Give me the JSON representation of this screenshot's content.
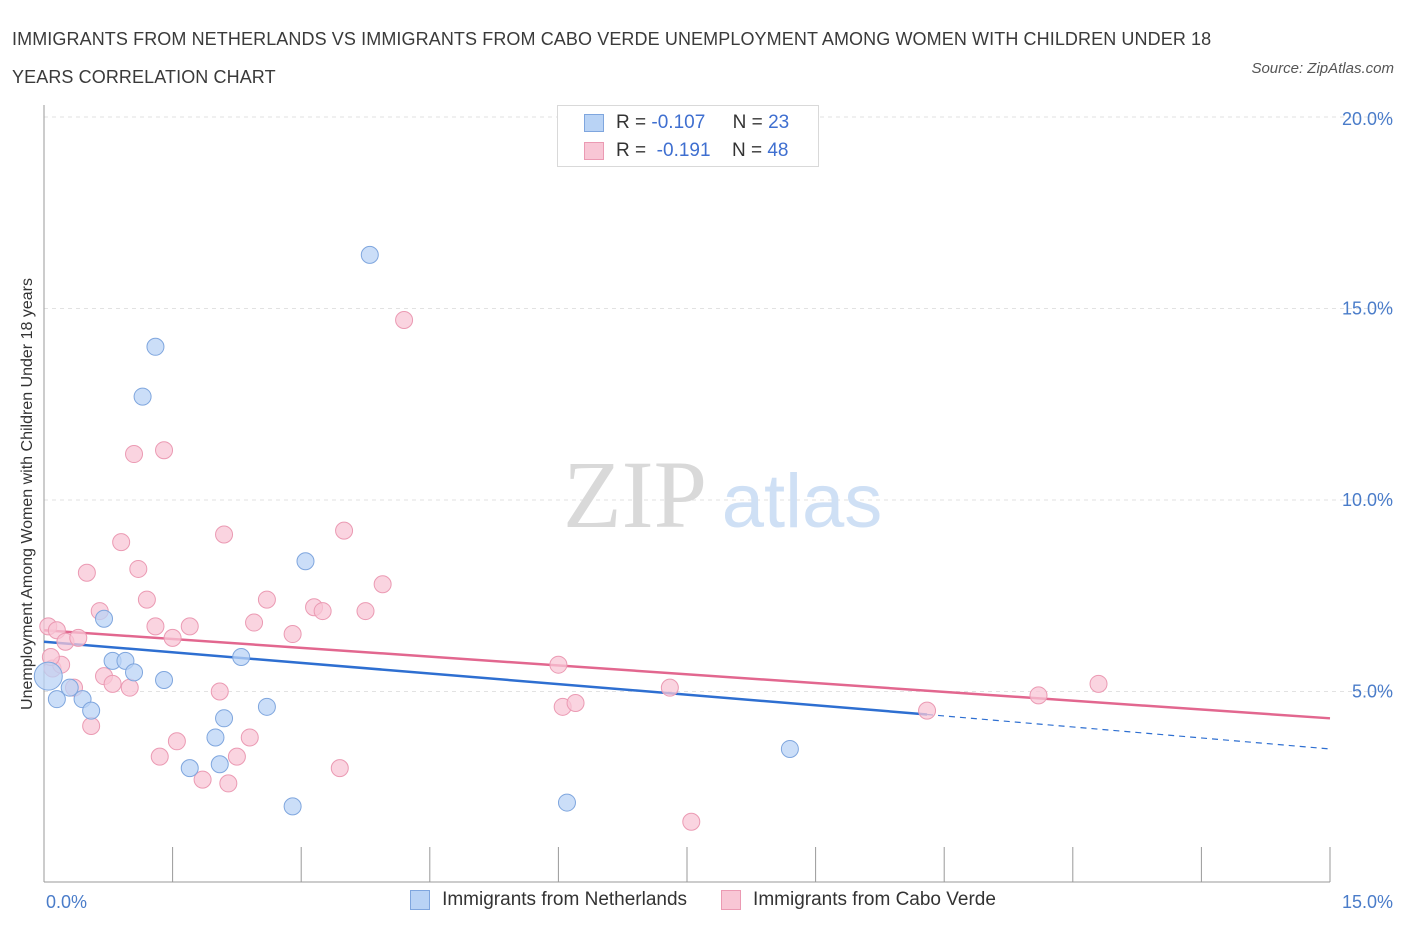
{
  "header": {
    "title": "IMMIGRANTS FROM NETHERLANDS VS IMMIGRANTS FROM CABO VERDE UNEMPLOYMENT AMONG WOMEN WITH CHILDREN UNDER 18 YEARS CORRELATION CHART",
    "source": "Source: ZipAtlas.com"
  },
  "watermark": {
    "zip": "ZIP",
    "atlas": "atlas"
  },
  "legend_top": {
    "rows": [
      {
        "r_label": "R =",
        "r_value": "-0.107",
        "n_label": "N =",
        "n_value": "23"
      },
      {
        "r_label": "R =",
        "r_value": "-0.191",
        "n_label": "N =",
        "n_value": "48"
      }
    ]
  },
  "bottom_legend": {
    "netherlands": "Immigrants from Netherlands",
    "cabo_verde": "Immigrants from Cabo Verde"
  },
  "colors": {
    "netherlands_fill": "#b9d3f5",
    "netherlands_stroke": "#7fa6de",
    "netherlands_line": "#2e6fd1",
    "cabo_fill": "#f8c6d5",
    "cabo_stroke": "#eb9ab3",
    "cabo_line": "#e2678f",
    "tick_text": "#4a7cc9"
  },
  "chart_data": {
    "type": "scatter",
    "title": "IMMIGRANTS FROM NETHERLANDS VS IMMIGRANTS FROM CABO VERDE UNEMPLOYMENT AMONG WOMEN WITH CHILDREN UNDER 18 YEARS CORRELATION CHART",
    "xlabel": "",
    "ylabel": "Unemployment Among Women with Children Under 18 years",
    "xlim": [
      0,
      15
    ],
    "ylim": [
      0,
      20
    ],
    "x_tick_labels": [
      "0.0%",
      "15.0%"
    ],
    "y_ticks": [
      5,
      10,
      15,
      20
    ],
    "y_tick_labels": [
      "5.0%",
      "10.0%",
      "15.0%",
      "20.0%"
    ],
    "grid": "horizontal dashed",
    "legend": "bottom-center",
    "series": [
      {
        "name": "Immigrants from Netherlands",
        "points": [
          [
            0.05,
            5.4
          ],
          [
            0.15,
            4.8
          ],
          [
            0.3,
            5.1
          ],
          [
            0.45,
            4.8
          ],
          [
            0.55,
            4.5
          ],
          [
            0.7,
            6.9
          ],
          [
            0.8,
            5.8
          ],
          [
            0.95,
            5.8
          ],
          [
            1.05,
            5.5
          ],
          [
            1.15,
            12.7
          ],
          [
            1.3,
            14.0
          ],
          [
            1.4,
            5.3
          ],
          [
            1.7,
            3.0
          ],
          [
            2.0,
            3.8
          ],
          [
            2.05,
            3.1
          ],
          [
            2.1,
            4.3
          ],
          [
            2.3,
            5.9
          ],
          [
            2.6,
            4.6
          ],
          [
            2.9,
            2.0
          ],
          [
            3.05,
            8.4
          ],
          [
            3.8,
            16.4
          ],
          [
            6.1,
            2.1
          ],
          [
            8.7,
            3.5
          ]
        ],
        "trend": {
          "x": [
            0,
            10.3
          ],
          "y": [
            6.3,
            4.4
          ],
          "dashed_x": [
            10.3,
            15
          ],
          "dashed_y": [
            4.4,
            3.5
          ]
        }
      },
      {
        "name": "Immigrants from Cabo Verde",
        "points": [
          [
            0.05,
            6.7
          ],
          [
            0.1,
            5.6
          ],
          [
            0.15,
            6.6
          ],
          [
            0.2,
            5.7
          ],
          [
            0.25,
            6.3
          ],
          [
            0.35,
            5.1
          ],
          [
            0.4,
            6.4
          ],
          [
            0.5,
            8.1
          ],
          [
            0.55,
            4.1
          ],
          [
            0.65,
            7.1
          ],
          [
            0.7,
            5.4
          ],
          [
            0.8,
            5.2
          ],
          [
            0.9,
            8.9
          ],
          [
            1.0,
            5.1
          ],
          [
            1.05,
            11.2
          ],
          [
            1.1,
            8.2
          ],
          [
            1.2,
            7.4
          ],
          [
            1.3,
            6.7
          ],
          [
            1.35,
            3.3
          ],
          [
            1.4,
            11.3
          ],
          [
            1.5,
            6.4
          ],
          [
            1.55,
            3.7
          ],
          [
            1.7,
            6.7
          ],
          [
            1.85,
            2.7
          ],
          [
            2.05,
            5.0
          ],
          [
            2.1,
            9.1
          ],
          [
            2.15,
            2.6
          ],
          [
            2.25,
            3.3
          ],
          [
            2.4,
            3.8
          ],
          [
            2.45,
            6.8
          ],
          [
            2.6,
            7.4
          ],
          [
            2.9,
            6.5
          ],
          [
            3.15,
            7.2
          ],
          [
            3.25,
            7.1
          ],
          [
            3.45,
            3.0
          ],
          [
            3.5,
            9.2
          ],
          [
            3.75,
            7.1
          ],
          [
            3.95,
            7.8
          ],
          [
            4.2,
            14.7
          ],
          [
            6.0,
            5.7
          ],
          [
            6.05,
            4.6
          ],
          [
            6.2,
            4.7
          ],
          [
            7.3,
            5.1
          ],
          [
            7.55,
            1.6
          ],
          [
            10.3,
            4.5
          ],
          [
            11.6,
            4.9
          ],
          [
            12.3,
            5.2
          ],
          [
            0.08,
            5.9
          ]
        ],
        "trend": {
          "x": [
            0,
            15
          ],
          "y": [
            6.6,
            4.3
          ]
        }
      }
    ]
  }
}
